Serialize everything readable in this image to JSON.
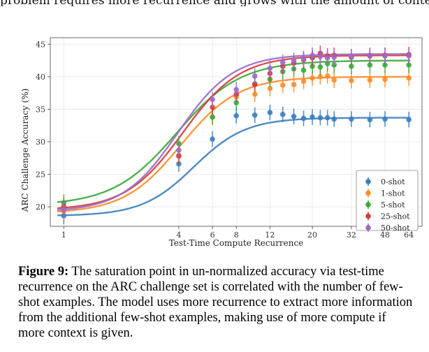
{
  "top_text": "problem requires more recurrence and grows with the amount of context.",
  "chart_data": {
    "type": "line",
    "title": "",
    "xlabel": "Test-Time Compute Recurrence",
    "ylabel": "ARC Challenge Accuracy (%)",
    "xscale": "log",
    "xlim": [
      0.85,
      75
    ],
    "ylim": [
      17,
      46
    ],
    "x_ticks": [
      1,
      4,
      6,
      8,
      12,
      20,
      32,
      48,
      64
    ],
    "y_ticks": [
      20,
      25,
      30,
      35,
      40,
      45
    ],
    "grid": true,
    "legend_position": "lower-right",
    "x": [
      1,
      4,
      6,
      8,
      10,
      12,
      14,
      16,
      18,
      20,
      22,
      24,
      26,
      32,
      40,
      48,
      64
    ],
    "series": [
      {
        "name": "0-shot",
        "color": "#3a7ebf",
        "values": [
          18.6,
          26.6,
          30.4,
          34.0,
          34.1,
          34.5,
          34.2,
          33.9,
          33.6,
          33.8,
          33.7,
          33.7,
          33.5,
          33.5,
          33.4,
          33.5,
          33.4
        ],
        "fit": {
          "low": 18.6,
          "high": 33.7,
          "mid": 4.8,
          "slope": 3.2
        }
      },
      {
        "name": "1-shot",
        "color": "#ff8c2a",
        "values": [
          19.3,
          27.9,
          33.8,
          36.9,
          37.3,
          38.2,
          38.7,
          38.8,
          39.3,
          39.8,
          40.0,
          40.1,
          39.5,
          39.4,
          39.5,
          39.6,
          39.8
        ],
        "fit": {
          "low": 19.0,
          "high": 40.0,
          "mid": 4.1,
          "slope": 2.9
        }
      },
      {
        "name": "5-shot",
        "color": "#3aa83a",
        "values": [
          20.6,
          29.7,
          33.8,
          36.0,
          38.9,
          39.6,
          40.8,
          41.2,
          41.0,
          41.6,
          41.5,
          42.0,
          41.8,
          41.6,
          41.8,
          41.8,
          41.8
        ],
        "fit": {
          "low": 20.2,
          "high": 42.5,
          "mid": 3.9,
          "slope": 2.6
        }
      },
      {
        "name": "25-shot",
        "color": "#d83a3a",
        "values": [
          20.0,
          27.8,
          35.3,
          37.3,
          38.8,
          40.5,
          41.6,
          42.1,
          42.6,
          42.9,
          43.6,
          43.2,
          43.3,
          43.0,
          43.2,
          43.3,
          43.4
        ],
        "fit": {
          "low": 19.5,
          "high": 43.3,
          "mid": 4.2,
          "slope": 2.9
        }
      },
      {
        "name": "50-shot",
        "color": "#9b6ac8",
        "values": [
          19.6,
          28.7,
          36.5,
          38.0,
          40.1,
          41.3,
          42.2,
          42.5,
          42.8,
          43.3,
          43.1,
          42.9,
          43.0,
          43.1,
          43.3,
          43.2,
          43.2
        ],
        "fit": {
          "low": 19.2,
          "high": 43.5,
          "mid": 3.95,
          "slope": 3.0
        }
      }
    ]
  },
  "caption": {
    "label": "Figure 9:",
    "text": " The saturation point in un-normalized accuracy via test-time recurrence on the ARC challenge set is correlated with the number of few-shot examples. The model uses more recurrence to extract more information from the additional few-shot examples, making use of more compute if more context is given."
  }
}
